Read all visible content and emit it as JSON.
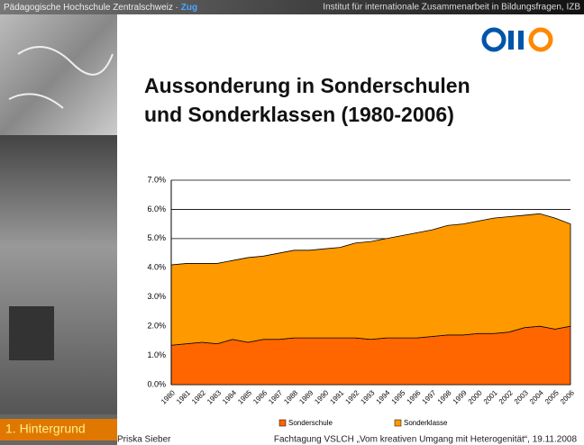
{
  "header": {
    "left": "Pädagogische Hochschule Zentralschweiz · ",
    "left_highlight": "Zug",
    "right": "Institut für internationale Zusammenarbeit in Bildungsfragen, IZB"
  },
  "chart_data": {
    "type": "stacked_area",
    "title_lines": [
      "Aussonderung in Sonderschulen",
      "und Sonderklassen (1980-2006)"
    ],
    "categories": [
      "1980",
      "1981",
      "1982",
      "1983",
      "1984",
      "1985",
      "1986",
      "1987",
      "1988",
      "1989",
      "1990",
      "1991",
      "1992",
      "1993",
      "1994",
      "1995",
      "1996",
      "1997",
      "1998",
      "1999",
      "2000",
      "2001",
      "2002",
      "2003",
      "2004",
      "2005",
      "2006"
    ],
    "series": [
      {
        "name": "Sonderschule",
        "color": "#ff6600",
        "values": [
          1.35,
          1.4,
          1.45,
          1.4,
          1.55,
          1.45,
          1.55,
          1.55,
          1.6,
          1.6,
          1.6,
          1.6,
          1.6,
          1.55,
          1.6,
          1.6,
          1.6,
          1.65,
          1.7,
          1.7,
          1.75,
          1.75,
          1.8,
          1.95,
          2.0,
          1.9,
          2.0
        ]
      },
      {
        "name": "Sonderklasse",
        "color": "#ff9900",
        "values": [
          2.75,
          2.75,
          2.7,
          2.75,
          2.7,
          2.9,
          2.85,
          2.95,
          3.0,
          3.0,
          3.05,
          3.1,
          3.25,
          3.35,
          3.4,
          3.5,
          3.6,
          3.65,
          3.75,
          3.8,
          3.85,
          3.95,
          3.95,
          3.85,
          3.85,
          3.8,
          3.5
        ]
      }
    ],
    "ylim": [
      0,
      7
    ],
    "yticks": [
      {
        "value": 0,
        "label": "0.0%"
      },
      {
        "value": 1,
        "label": "1.0%"
      },
      {
        "value": 2,
        "label": "2.0%"
      },
      {
        "value": 3,
        "label": "3.0%"
      },
      {
        "value": 4,
        "label": "4.0%"
      },
      {
        "value": 5,
        "label": "5.0%"
      },
      {
        "value": 6,
        "label": "6.0%"
      },
      {
        "value": 7,
        "label": "7.0%"
      }
    ],
    "grid": true,
    "legend": "bottom"
  },
  "footer": {
    "section": "1. Hintergrund",
    "author": "Priska Sieber",
    "event": "Fachtagung VSLCH „Vom kreativen Umgang mit Heterogenität“, 19.11.2008"
  }
}
